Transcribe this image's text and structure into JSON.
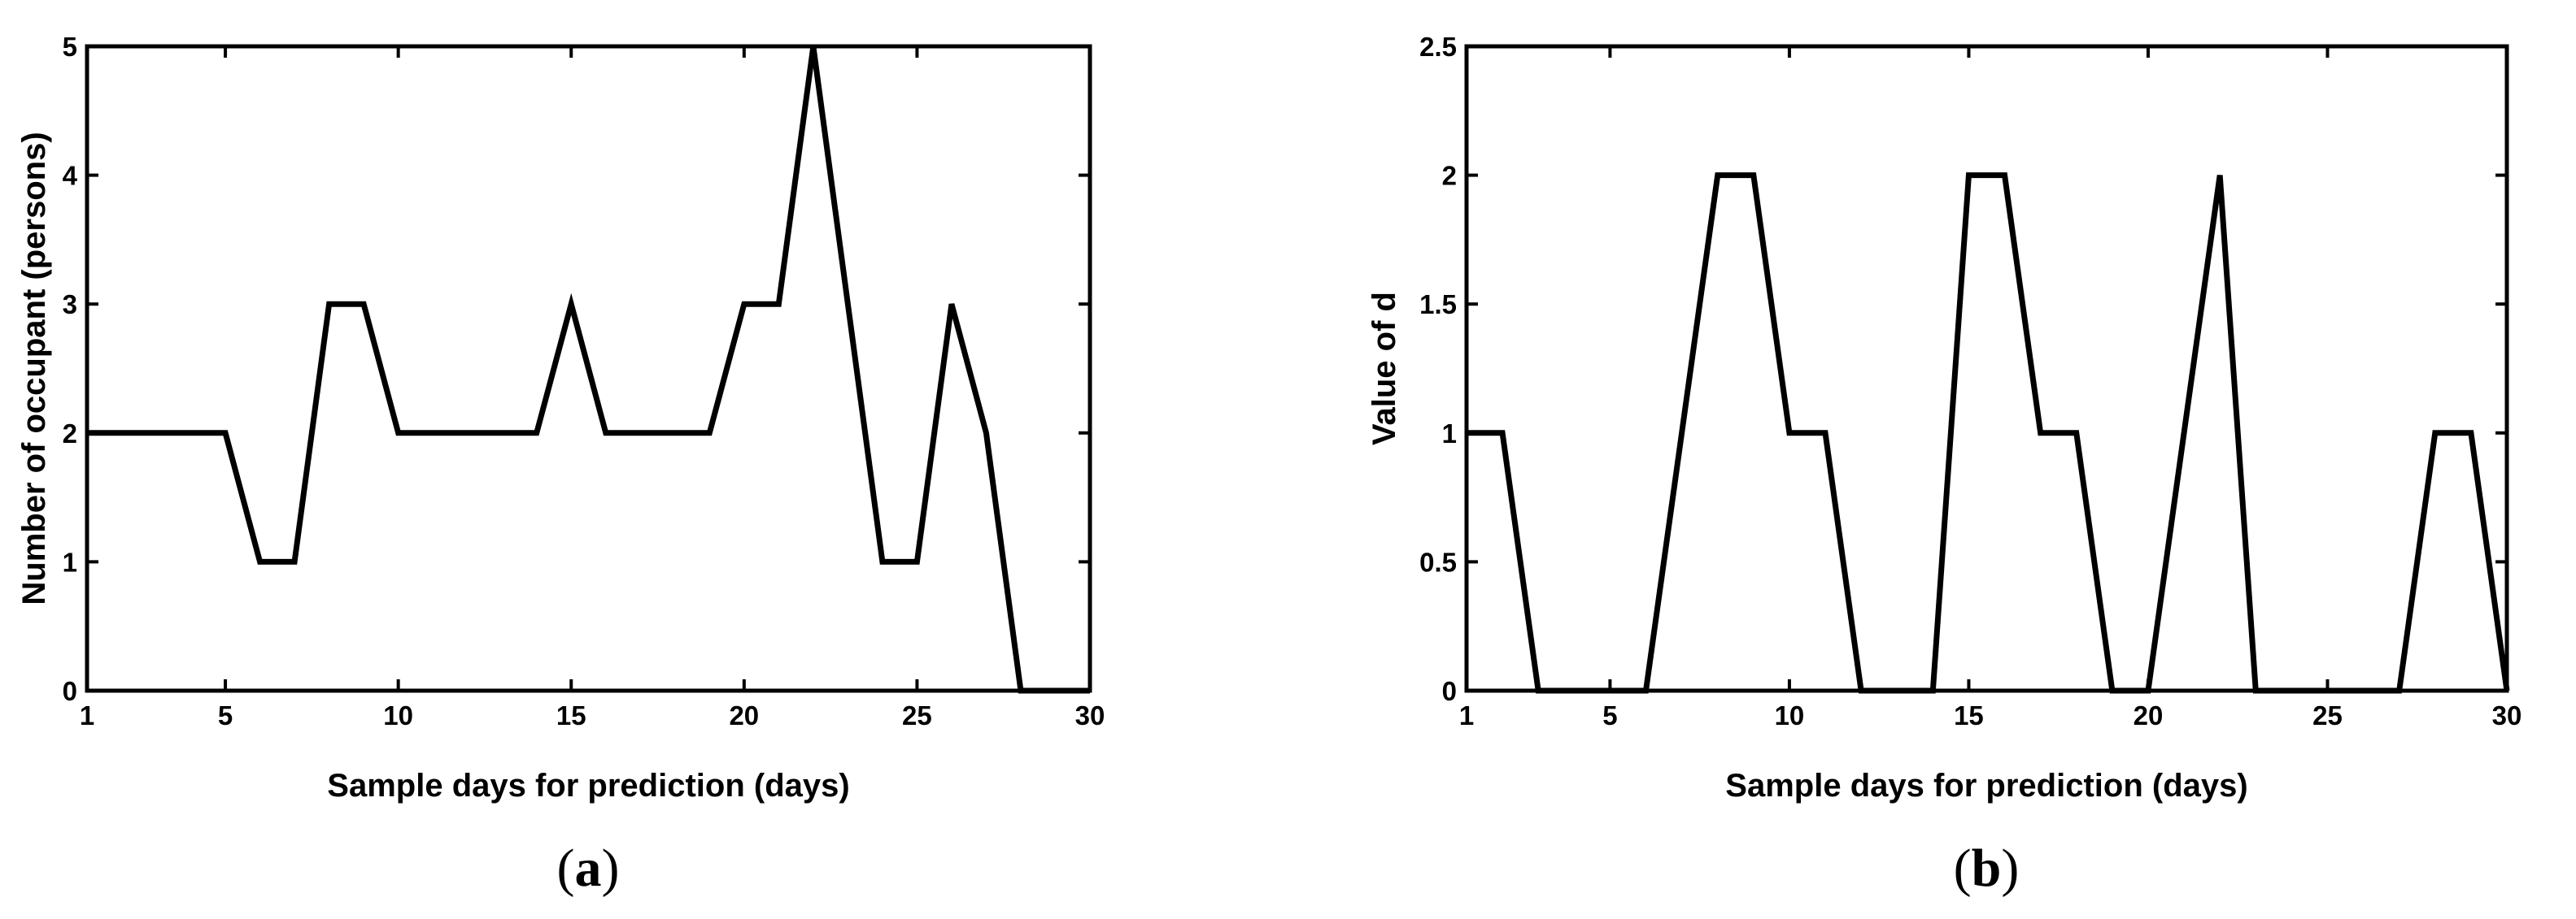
{
  "chart_data": [
    {
      "type": "line",
      "panel_label": "(a)",
      "panel_letter": "a",
      "title": "",
      "xlabel": "Sample days for prediction (days)",
      "ylabel": "Number of occupant (persons)",
      "xlim": [
        1,
        30
      ],
      "ylim": [
        0,
        5
      ],
      "xticks": [
        1,
        5,
        10,
        15,
        20,
        25,
        30
      ],
      "yticks": [
        0,
        1,
        2,
        3,
        4,
        5
      ],
      "ytick_labels": [
        "0",
        "1",
        "2",
        "3",
        "4",
        "5"
      ],
      "grid": false,
      "line_color": "#000000",
      "x": [
        1,
        2,
        3,
        4,
        5,
        6,
        7,
        8,
        9,
        10,
        11,
        12,
        13,
        14,
        15,
        16,
        17,
        18,
        19,
        20,
        21,
        22,
        23,
        24,
        25,
        26,
        27,
        28,
        29,
        30
      ],
      "y": [
        2,
        2,
        2,
        2,
        2,
        1,
        1,
        3,
        3,
        2,
        2,
        2,
        2,
        2,
        3,
        2,
        2,
        2,
        2,
        3,
        3,
        5,
        3,
        1,
        1,
        3,
        2,
        0,
        0,
        0
      ]
    },
    {
      "type": "line",
      "panel_label": "(b)",
      "panel_letter": "b",
      "title": "",
      "xlabel": "Sample days for prediction (days)",
      "ylabel": "Value of d",
      "xlim": [
        1,
        30
      ],
      "ylim": [
        0,
        2.5
      ],
      "xticks": [
        1,
        5,
        10,
        15,
        20,
        25,
        30
      ],
      "yticks": [
        0,
        0.5,
        1,
        1.5,
        2,
        2.5
      ],
      "ytick_labels": [
        "0",
        "0.5",
        "1",
        "1.5",
        "2",
        "2.5"
      ],
      "grid": false,
      "line_color": "#000000",
      "x": [
        1,
        2,
        3,
        4,
        5,
        6,
        7,
        8,
        9,
        10,
        11,
        12,
        13,
        14,
        15,
        16,
        17,
        18,
        19,
        20,
        21,
        22,
        23,
        24,
        25,
        26,
        27,
        28,
        29,
        30
      ],
      "y": [
        1,
        1,
        0,
        0,
        0,
        0,
        1,
        2,
        2,
        1,
        1,
        0,
        0,
        0,
        2,
        2,
        1,
        1,
        0,
        0,
        1,
        2,
        0,
        0,
        0,
        0,
        0,
        1,
        1,
        0
      ]
    }
  ]
}
